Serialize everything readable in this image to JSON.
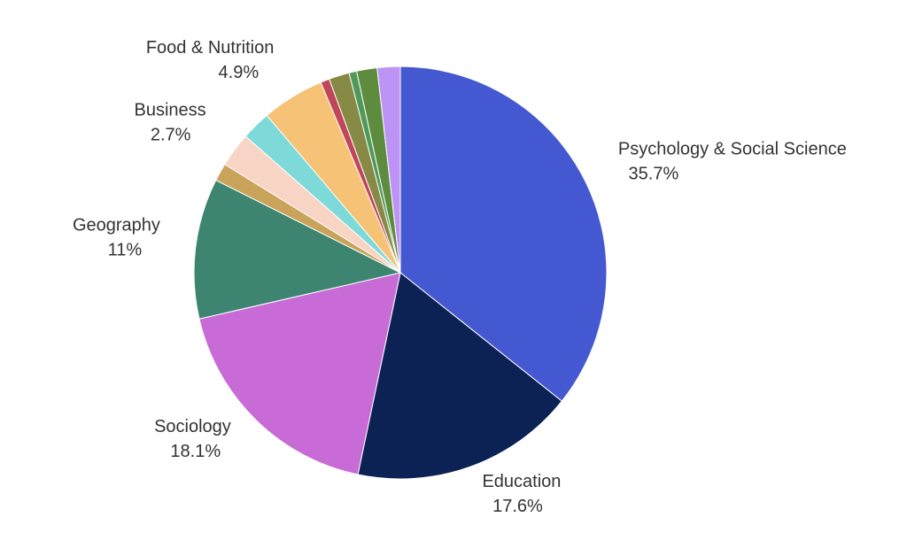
{
  "chart_data": {
    "type": "pie",
    "categories": [
      "Psychology & Social Science",
      "Education",
      "Sociology",
      "Geography",
      null,
      "Business",
      null,
      "Food & Nutrition",
      null,
      null,
      null,
      null,
      null
    ],
    "values": [
      35.7,
      17.6,
      18.1,
      11,
      1.4,
      2.7,
      2.3,
      4.9,
      0.7,
      1.6,
      0.6,
      1.6,
      1.8
    ],
    "value_labels": [
      "35.7%",
      "17.6%",
      "18.1%",
      "11%",
      null,
      "2.7%",
      null,
      "4.9%",
      null,
      null,
      null,
      null,
      null
    ],
    "colors": [
      "#4459d1",
      "#0c2154",
      "#c86bd6",
      "#3d8570",
      "#c9a35a",
      "#f7d4c4",
      "#7ed9d9",
      "#f5c276",
      "#c0465a",
      "#868a45",
      "#4f9a5a",
      "#5d8c3e",
      "#bd94f5"
    ]
  }
}
